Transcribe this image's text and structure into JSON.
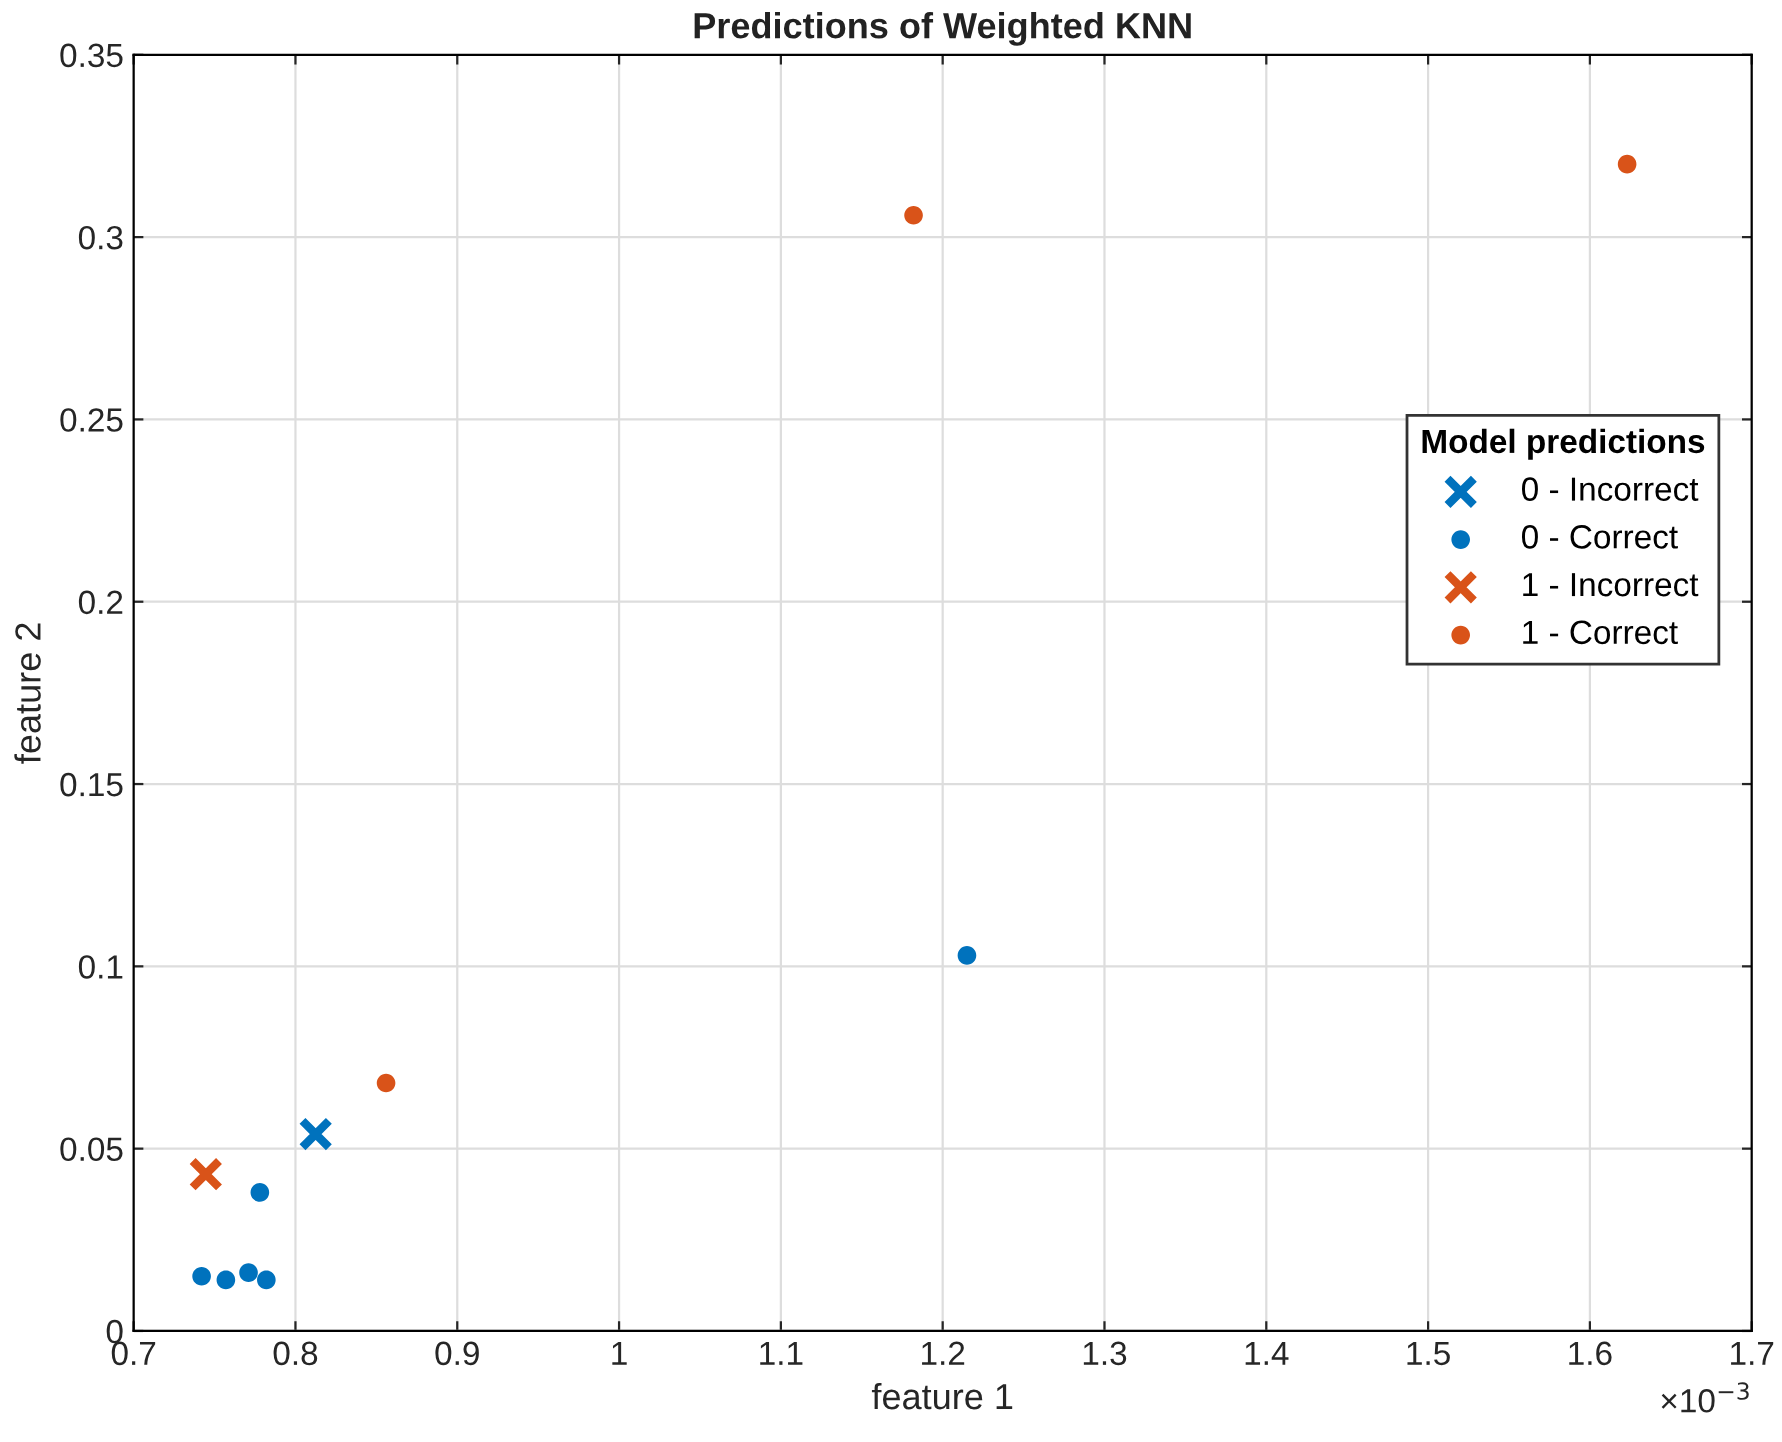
{
  "chart_data": {
    "type": "scatter",
    "title": "Predictions of Weighted KNN",
    "xlabel": "feature 1",
    "ylabel": "feature 2",
    "annotations": [
      "×10$^{−3}$"
    ],
    "legend_title": "Model predictions",
    "legend": "right",
    "xlim": [
      0.7,
      1.7
    ],
    "xticks": [
      0.7,
      0.8,
      0.9,
      1,
      1.1,
      1.2,
      1.3,
      1.4,
      1.5,
      1.6,
      1.7
    ],
    "ylim": [
      0,
      0.35
    ],
    "yticks": [
      0,
      0.05,
      0.1,
      0.15,
      0.2,
      0.25,
      0.3,
      0.35
    ],
    "grid": true,
    "series": [
      {
        "name": "0 - Incorrect",
        "color": "#0072bd",
        "marker": "cross",
        "x": [
          0.8125
        ],
        "values": [
          0.054
        ]
      },
      {
        "name": "0 - Correct",
        "color": "#0072bd",
        "marker": "circle",
        "x": [
          0.742,
          0.757,
          0.771,
          0.782,
          0.778,
          1.215
        ],
        "values": [
          0.015,
          0.014,
          0.016,
          0.014,
          0.038,
          0.103
        ]
      },
      {
        "name": "1 - Incorrect",
        "color": "#d95319",
        "marker": "cross",
        "x": [
          0.7446
        ],
        "values": [
          0.043
        ]
      },
      {
        "name": "1 - Correct",
        "color": "#d95319",
        "marker": "circle",
        "x": [
          0.856,
          1.182,
          1.623
        ],
        "values": [
          0.068,
          0.306,
          0.32
        ]
      }
    ]
  }
}
